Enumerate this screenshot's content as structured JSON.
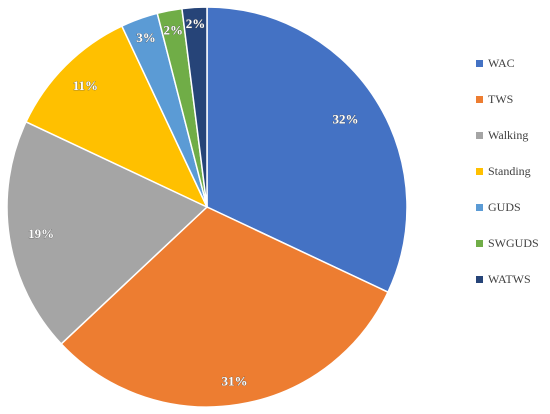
{
  "chart_data": {
    "type": "pie",
    "categories": [
      "WAC",
      "TWS",
      "Walking",
      "Standing",
      "GUDS",
      "SWGUDS",
      "WATWS"
    ],
    "values": [
      32,
      31,
      19,
      11,
      3,
      2,
      2
    ],
    "data_labels": [
      "32%",
      "31%",
      "19%",
      "11%",
      "3%",
      "2%",
      "2%"
    ],
    "colors": [
      "#4472C4",
      "#ED7D31",
      "#A5A5A5",
      "#FFC000",
      "#5B9BD5",
      "#70AD47",
      "#264478"
    ],
    "legend_position": "right",
    "start_angle": "12 o'clock",
    "direction": "clockwise"
  }
}
